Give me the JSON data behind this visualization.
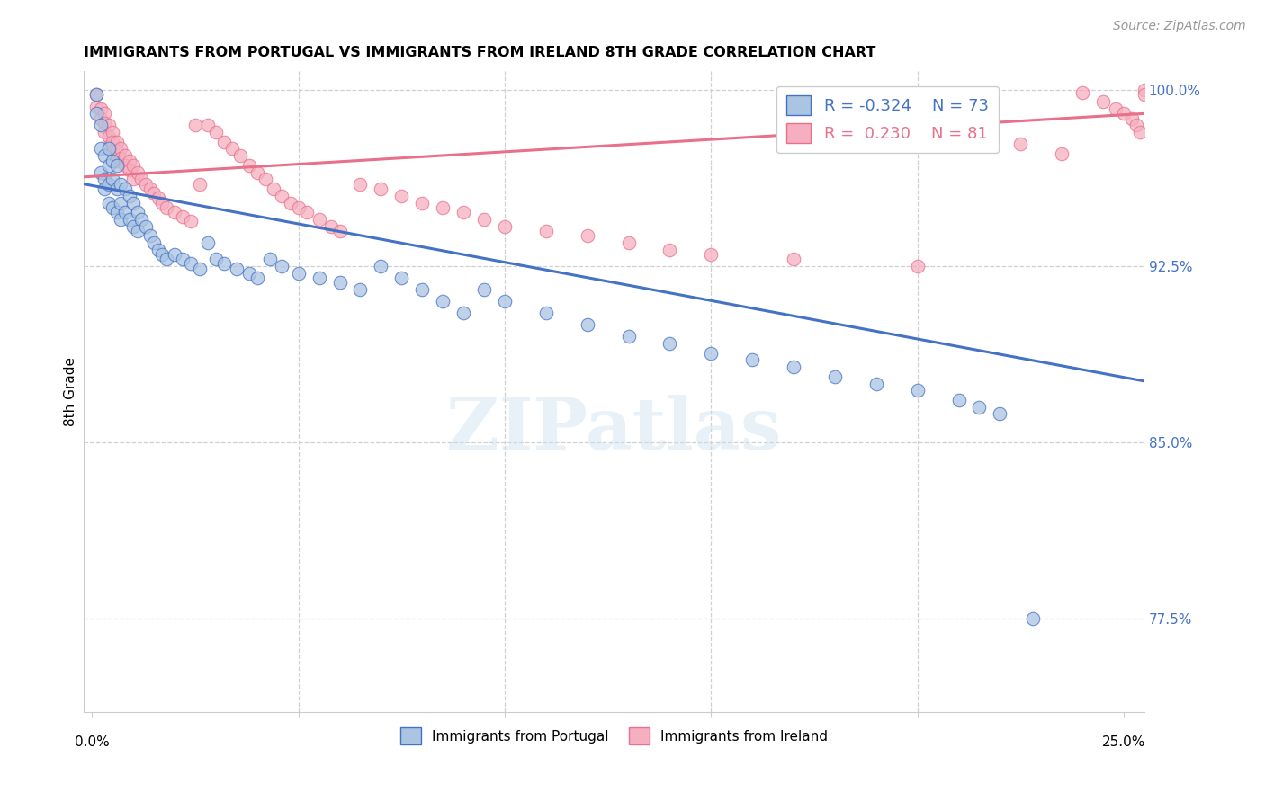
{
  "title": "IMMIGRANTS FROM PORTUGAL VS IMMIGRANTS FROM IRELAND 8TH GRADE CORRELATION CHART",
  "source": "Source: ZipAtlas.com",
  "ylabel": "8th Grade",
  "ymin": 0.735,
  "ymax": 1.008,
  "xmin": -0.002,
  "xmax": 0.255,
  "portugal_color": "#aac4e2",
  "ireland_color": "#f5afc0",
  "portugal_line_color": "#4472c4",
  "ireland_line_color": "#e8708a",
  "legend_R_portugal": "-0.324",
  "legend_N_portugal": "73",
  "legend_R_ireland": "0.230",
  "legend_N_ireland": "81",
  "watermark": "ZIPatlas",
  "portugal_x": [
    0.001,
    0.001,
    0.002,
    0.002,
    0.002,
    0.003,
    0.003,
    0.003,
    0.004,
    0.004,
    0.004,
    0.004,
    0.005,
    0.005,
    0.005,
    0.006,
    0.006,
    0.006,
    0.007,
    0.007,
    0.007,
    0.008,
    0.008,
    0.009,
    0.009,
    0.01,
    0.01,
    0.011,
    0.011,
    0.012,
    0.013,
    0.014,
    0.015,
    0.016,
    0.017,
    0.018,
    0.02,
    0.022,
    0.024,
    0.026,
    0.028,
    0.03,
    0.032,
    0.035,
    0.038,
    0.04,
    0.043,
    0.046,
    0.05,
    0.055,
    0.06,
    0.065,
    0.07,
    0.075,
    0.08,
    0.085,
    0.09,
    0.095,
    0.1,
    0.11,
    0.12,
    0.13,
    0.14,
    0.15,
    0.16,
    0.17,
    0.18,
    0.19,
    0.2,
    0.21,
    0.215,
    0.22,
    0.228
  ],
  "portugal_y": [
    0.998,
    0.99,
    0.985,
    0.975,
    0.965,
    0.972,
    0.962,
    0.958,
    0.975,
    0.968,
    0.96,
    0.952,
    0.97,
    0.962,
    0.95,
    0.968,
    0.958,
    0.948,
    0.96,
    0.952,
    0.945,
    0.958,
    0.948,
    0.955,
    0.945,
    0.952,
    0.942,
    0.948,
    0.94,
    0.945,
    0.942,
    0.938,
    0.935,
    0.932,
    0.93,
    0.928,
    0.93,
    0.928,
    0.926,
    0.924,
    0.935,
    0.928,
    0.926,
    0.924,
    0.922,
    0.92,
    0.928,
    0.925,
    0.922,
    0.92,
    0.918,
    0.915,
    0.925,
    0.92,
    0.915,
    0.91,
    0.905,
    0.915,
    0.91,
    0.905,
    0.9,
    0.895,
    0.892,
    0.888,
    0.885,
    0.882,
    0.878,
    0.875,
    0.872,
    0.868,
    0.865,
    0.862,
    0.775
  ],
  "ireland_x": [
    0.001,
    0.001,
    0.002,
    0.002,
    0.003,
    0.003,
    0.003,
    0.004,
    0.004,
    0.004,
    0.005,
    0.005,
    0.005,
    0.006,
    0.006,
    0.006,
    0.007,
    0.007,
    0.008,
    0.008,
    0.009,
    0.009,
    0.01,
    0.01,
    0.011,
    0.012,
    0.013,
    0.014,
    0.015,
    0.016,
    0.017,
    0.018,
    0.02,
    0.022,
    0.024,
    0.025,
    0.026,
    0.028,
    0.03,
    0.032,
    0.034,
    0.036,
    0.038,
    0.04,
    0.042,
    0.044,
    0.046,
    0.048,
    0.05,
    0.052,
    0.055,
    0.058,
    0.06,
    0.065,
    0.07,
    0.075,
    0.08,
    0.085,
    0.09,
    0.095,
    0.1,
    0.11,
    0.12,
    0.13,
    0.14,
    0.15,
    0.17,
    0.2,
    0.21,
    0.215,
    0.225,
    0.235,
    0.24,
    0.245,
    0.248,
    0.25,
    0.252,
    0.253,
    0.254,
    0.255,
    0.255
  ],
  "ireland_y": [
    0.998,
    0.993,
    0.992,
    0.988,
    0.99,
    0.986,
    0.982,
    0.985,
    0.98,
    0.976,
    0.982,
    0.978,
    0.974,
    0.978,
    0.974,
    0.97,
    0.975,
    0.971,
    0.972,
    0.968,
    0.97,
    0.966,
    0.968,
    0.962,
    0.965,
    0.962,
    0.96,
    0.958,
    0.956,
    0.954,
    0.952,
    0.95,
    0.948,
    0.946,
    0.944,
    0.985,
    0.96,
    0.985,
    0.982,
    0.978,
    0.975,
    0.972,
    0.968,
    0.965,
    0.962,
    0.958,
    0.955,
    0.952,
    0.95,
    0.948,
    0.945,
    0.942,
    0.94,
    0.96,
    0.958,
    0.955,
    0.952,
    0.95,
    0.948,
    0.945,
    0.942,
    0.94,
    0.938,
    0.935,
    0.932,
    0.93,
    0.928,
    0.925,
    0.985,
    0.981,
    0.977,
    0.973,
    0.999,
    0.995,
    0.992,
    0.99,
    0.988,
    0.985,
    0.982,
    1.0,
    0.998
  ],
  "port_line_x0": -0.002,
  "port_line_x1": 0.255,
  "port_line_y0": 0.96,
  "port_line_y1": 0.876,
  "ire_line_x0": -0.002,
  "ire_line_x1": 0.255,
  "ire_line_y0": 0.963,
  "ire_line_y1": 0.99
}
